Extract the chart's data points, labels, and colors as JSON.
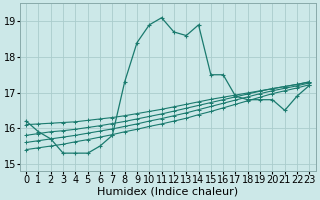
{
  "xlabel": "Humidex (Indice chaleur)",
  "bg_color": "#cce8e8",
  "grid_color": "#aacccc",
  "line_color": "#1a7a6e",
  "xlim": [
    -0.5,
    23.5
  ],
  "ylim": [
    14.8,
    19.5
  ],
  "yticks": [
    15,
    16,
    17,
    18,
    19
  ],
  "xticks": [
    0,
    1,
    2,
    3,
    4,
    5,
    6,
    7,
    8,
    9,
    10,
    11,
    12,
    13,
    14,
    15,
    16,
    17,
    18,
    19,
    20,
    21,
    22,
    23
  ],
  "series_main": [
    16.2,
    15.9,
    15.7,
    15.3,
    15.3,
    15.3,
    15.5,
    15.8,
    17.3,
    18.4,
    18.9,
    19.1,
    18.7,
    18.6,
    18.9,
    17.5,
    17.5,
    16.9,
    16.8,
    16.8,
    16.8,
    16.5,
    16.9,
    17.2
  ],
  "series_linear": [
    [
      15.4,
      15.45,
      15.5,
      15.55,
      15.62,
      15.68,
      15.75,
      15.82,
      15.9,
      15.97,
      16.05,
      16.12,
      16.2,
      16.28,
      16.38,
      16.47,
      16.57,
      16.67,
      16.77,
      16.87,
      16.97,
      17.05,
      17.13,
      17.22
    ],
    [
      15.6,
      15.65,
      15.7,
      15.75,
      15.8,
      15.86,
      15.92,
      15.98,
      16.05,
      16.12,
      16.2,
      16.27,
      16.35,
      16.43,
      16.52,
      16.61,
      16.7,
      16.79,
      16.88,
      16.97,
      17.05,
      17.12,
      17.19,
      17.27
    ],
    [
      15.8,
      15.85,
      15.9,
      15.93,
      15.97,
      16.02,
      16.07,
      16.13,
      16.19,
      16.26,
      16.33,
      16.4,
      16.48,
      16.56,
      16.64,
      16.72,
      16.8,
      16.88,
      16.96,
      17.04,
      17.11,
      17.17,
      17.23,
      17.3
    ],
    [
      16.1,
      16.12,
      16.14,
      16.16,
      16.18,
      16.22,
      16.26,
      16.3,
      16.35,
      16.41,
      16.47,
      16.53,
      16.6,
      16.67,
      16.74,
      16.81,
      16.87,
      16.93,
      16.99,
      17.05,
      17.11,
      17.17,
      17.23,
      17.3
    ]
  ],
  "xlabel_fontsize": 8,
  "tick_fontsize": 7
}
